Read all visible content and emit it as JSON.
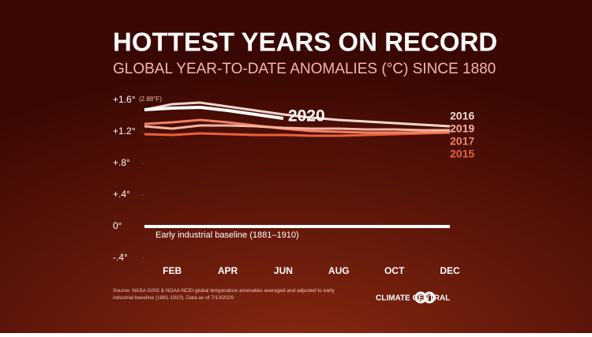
{
  "chart_data": {
    "type": "line",
    "title": "HOTTEST YEARS ON RECORD",
    "subtitle": "GLOBAL YEAR-TO-DATE ANOMALIES (°C) SINCE 1880",
    "annotation": "(2.88°F)",
    "source": "Source: NASA GISS & NOAA NCEI global temperature anomalies averaged and adjusted to early industrial baseline (1881-1910). Data as of 7/13/2020",
    "brand": "CLIMATE CENTRAL",
    "categories": [
      null,
      "FEB",
      null,
      "APR",
      null,
      "JUN",
      null,
      "AUG",
      null,
      "OCT",
      null,
      "DEC"
    ],
    "ylim": [
      -0.45,
      1.7
    ],
    "yticks": [
      {
        "value": 1.6,
        "label": "+1.6°"
      },
      {
        "value": 1.2,
        "label": "+1.2°"
      },
      {
        "value": 0.8,
        "label": "+.8°"
      },
      {
        "value": 0.4,
        "label": "+.4°"
      },
      {
        "value": 0,
        "label": "0°"
      },
      {
        "value": -0.4,
        "label": "-.4°"
      }
    ],
    "series": [
      {
        "name": "Early industrial baseline (1881–1910)",
        "color": "#ffffff",
        "values": [
          0,
          0,
          0,
          0,
          0,
          0,
          0,
          0,
          0,
          0,
          0,
          0
        ]
      },
      {
        "name": "2015",
        "color": "#e8603c",
        "values": [
          1.17,
          1.16,
          1.18,
          1.17,
          1.16,
          1.16,
          1.15,
          1.15,
          1.16,
          1.17,
          1.18,
          1.19
        ]
      },
      {
        "name": "2017",
        "color": "#f08060",
        "values": [
          1.3,
          1.32,
          1.35,
          1.32,
          1.28,
          1.24,
          1.21,
          1.2,
          1.19,
          1.19,
          1.19,
          1.2
        ]
      },
      {
        "name": "2019",
        "color": "#f6b3a0",
        "values": [
          1.27,
          1.24,
          1.28,
          1.28,
          1.27,
          1.25,
          1.24,
          1.24,
          1.23,
          1.23,
          1.22,
          1.22
        ]
      },
      {
        "name": "2016",
        "color": "#f4d7cc",
        "values": [
          1.48,
          1.55,
          1.57,
          1.52,
          1.47,
          1.42,
          1.38,
          1.35,
          1.33,
          1.31,
          1.29,
          1.27
        ]
      },
      {
        "name": "2020",
        "color": "#ffffff",
        "values": [
          1.48,
          1.5,
          1.51,
          1.47,
          1.42,
          1.37,
          null,
          null,
          null,
          null,
          null,
          null
        ]
      }
    ]
  }
}
